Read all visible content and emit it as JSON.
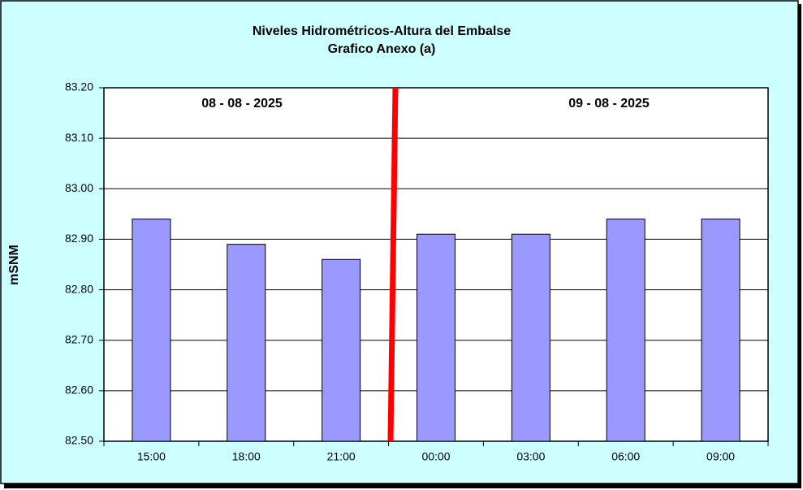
{
  "chart_data": {
    "type": "bar",
    "title": "Niveles Hidrométricos-Altura del Embalse",
    "subtitle": "Grafico Anexo (a)",
    "y_label": "mSNM",
    "annotations": [
      "08 - 08 - 2025",
      "09 - 08 - 2025"
    ],
    "categories": [
      "15:00",
      "18:00",
      "21:00",
      "00:00",
      "03:00",
      "06:00",
      "09:00"
    ],
    "values": [
      82.94,
      82.89,
      82.86,
      82.91,
      82.91,
      82.94,
      82.94
    ],
    "color": "#9999ff",
    "ylim": [
      82.5,
      83.2
    ],
    "yticks": [
      {
        "value": 82.5,
        "label": "82.50"
      },
      {
        "value": 82.6,
        "label": "82.60"
      },
      {
        "value": 82.7,
        "label": "82.70"
      },
      {
        "value": 82.8,
        "label": "82.80"
      },
      {
        "value": 82.9,
        "label": "82.90"
      },
      {
        "value": 83.0,
        "label": "83.00"
      },
      {
        "value": 83.1,
        "label": "83.10"
      },
      {
        "value": 83.2,
        "label": "83.20"
      }
    ],
    "grid": true
  }
}
